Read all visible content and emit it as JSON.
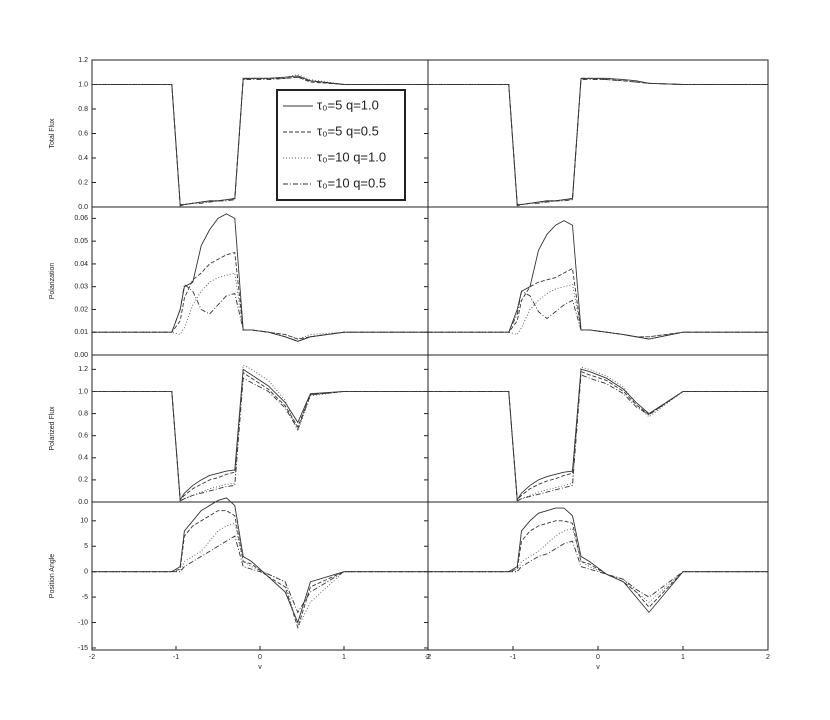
{
  "chart_data": [
    {
      "type": "line",
      "ylabel": "Total Flux",
      "legend": "lower right",
      "xlim": [
        -2,
        2
      ],
      "ylim": [
        0,
        1.2
      ],
      "yticks": [
        {
          "value": 0,
          "label": "0.0"
        },
        {
          "value": 0.2,
          "label": "0.2"
        },
        {
          "value": 0.4,
          "label": "0.4"
        },
        {
          "value": 0.6,
          "label": "0.6"
        },
        {
          "value": 0.8,
          "label": "0.8"
        },
        {
          "value": 1.0,
          "label": "1.0"
        },
        {
          "value": 1.2,
          "label": "1.2"
        }
      ],
      "x": [
        -2,
        -1.05,
        -0.95,
        -0.9,
        -0.8,
        -0.7,
        -0.6,
        -0.5,
        -0.4,
        -0.3,
        -0.2,
        -0.1,
        0.1,
        0.3,
        0.45,
        0.6,
        1,
        2
      ],
      "series": [
        {
          "name": "τ₀=5 q=1.0",
          "color": "#333333",
          "dash": "none",
          "values": [
            1,
            1,
            0.02,
            0.02,
            0.03,
            0.04,
            0.05,
            0.05,
            0.06,
            0.07,
            1.05,
            1.05,
            1.05,
            1.06,
            1.07,
            1.03,
            1.0,
            1.0
          ]
        },
        {
          "name": "τ₀=5 q=0.5",
          "color": "#333333",
          "dash": "4 2",
          "values": [
            1,
            1,
            0.02,
            0.02,
            0.03,
            0.04,
            0.05,
            0.05,
            0.06,
            0.07,
            1.05,
            1.05,
            1.05,
            1.05,
            1.06,
            1.02,
            1.0,
            1.0
          ]
        },
        {
          "name": "τ₀=10 q=1.0",
          "color": "#555555",
          "dash": "1 2",
          "values": [
            1,
            1,
            0.01,
            0.02,
            0.03,
            0.04,
            0.04,
            0.05,
            0.06,
            0.06,
            1.04,
            1.05,
            1.05,
            1.06,
            1.08,
            1.04,
            1.0,
            1.0
          ]
        },
        {
          "name": "τ₀=10 q=0.5",
          "color": "#333333",
          "dash": "5 2 1 2",
          "values": [
            1,
            1,
            0.01,
            0.02,
            0.03,
            0.03,
            0.04,
            0.05,
            0.05,
            0.06,
            1.04,
            1.04,
            1.04,
            1.05,
            1.06,
            1.03,
            1.0,
            1.0
          ]
        }
      ]
    },
    {
      "type": "line",
      "xlim": [
        -2,
        2
      ],
      "ylim": [
        0,
        1.2
      ],
      "x": [
        -2,
        -1.05,
        -0.95,
        -0.9,
        -0.8,
        -0.7,
        -0.6,
        -0.5,
        -0.4,
        -0.3,
        -0.2,
        -0.1,
        0.1,
        0.3,
        0.45,
        0.6,
        1,
        2
      ],
      "series": [
        {
          "color": "#333333",
          "dash": "none",
          "values": [
            1,
            1,
            0.02,
            0.02,
            0.03,
            0.04,
            0.05,
            0.05,
            0.06,
            0.07,
            1.05,
            1.05,
            1.05,
            1.04,
            1.03,
            1.01,
            1.0,
            1.0
          ]
        },
        {
          "color": "#333333",
          "dash": "4 2",
          "values": [
            1,
            1,
            0.02,
            0.02,
            0.03,
            0.04,
            0.05,
            0.05,
            0.06,
            0.07,
            1.05,
            1.05,
            1.04,
            1.03,
            1.02,
            1.01,
            1.0,
            1.0
          ]
        },
        {
          "color": "#555555",
          "dash": "1 2",
          "values": [
            1,
            1,
            0.01,
            0.02,
            0.03,
            0.04,
            0.04,
            0.05,
            0.06,
            0.06,
            1.04,
            1.05,
            1.05,
            1.04,
            1.03,
            1.01,
            1.0,
            1.0
          ]
        },
        {
          "color": "#333333",
          "dash": "5 2 1 2",
          "values": [
            1,
            1,
            0.01,
            0.02,
            0.03,
            0.03,
            0.04,
            0.05,
            0.05,
            0.06,
            1.04,
            1.04,
            1.04,
            1.03,
            1.02,
            1.01,
            1.0,
            1.0
          ]
        }
      ]
    },
    {
      "type": "line",
      "ylabel": "Polarization",
      "xlim": [
        -2,
        2
      ],
      "ylim": [
        0,
        0.065
      ],
      "yticks": [
        {
          "value": 0,
          "label": "0.00"
        },
        {
          "value": 0.01,
          "label": "0.01"
        },
        {
          "value": 0.02,
          "label": "0.02"
        },
        {
          "value": 0.03,
          "label": "0.03"
        },
        {
          "value": 0.04,
          "label": "0.04"
        },
        {
          "value": 0.05,
          "label": "0.05"
        },
        {
          "value": 0.06,
          "label": "0.06"
        }
      ],
      "x": [
        -2,
        -1.05,
        -0.95,
        -0.9,
        -0.8,
        -0.7,
        -0.6,
        -0.5,
        -0.4,
        -0.3,
        -0.2,
        -0.1,
        0.1,
        0.3,
        0.45,
        0.6,
        1,
        2
      ],
      "series": [
        {
          "color": "#333333",
          "dash": "none",
          "values": [
            0.01,
            0.01,
            0.02,
            0.03,
            0.032,
            0.048,
            0.055,
            0.06,
            0.062,
            0.06,
            0.011,
            0.011,
            0.01,
            0.008,
            0.006,
            0.008,
            0.01,
            0.01
          ]
        },
        {
          "color": "#333333",
          "dash": "4 2",
          "values": [
            0.01,
            0.01,
            0.015,
            0.025,
            0.033,
            0.036,
            0.04,
            0.042,
            0.044,
            0.045,
            0.011,
            0.011,
            0.01,
            0.009,
            0.007,
            0.008,
            0.01,
            0.01
          ]
        },
        {
          "color": "#555555",
          "dash": "1 2",
          "values": [
            0.01,
            0.01,
            0.009,
            0.012,
            0.022,
            0.028,
            0.032,
            0.034,
            0.035,
            0.036,
            0.011,
            0.011,
            0.01,
            0.009,
            0.007,
            0.009,
            0.01,
            0.01
          ]
        },
        {
          "color": "#333333",
          "dash": "5 2 1 2",
          "values": [
            0.01,
            0.01,
            0.02,
            0.031,
            0.028,
            0.02,
            0.018,
            0.022,
            0.026,
            0.027,
            0.011,
            0.011,
            0.01,
            0.008,
            0.006,
            0.008,
            0.01,
            0.01
          ]
        }
      ]
    },
    {
      "type": "line",
      "xlim": [
        -2,
        2
      ],
      "ylim": [
        0,
        0.065
      ],
      "x": [
        -2,
        -1.05,
        -0.95,
        -0.9,
        -0.8,
        -0.7,
        -0.6,
        -0.5,
        -0.4,
        -0.3,
        -0.2,
        -0.1,
        0.1,
        0.3,
        0.45,
        0.6,
        1,
        2
      ],
      "series": [
        {
          "color": "#333333",
          "dash": "none",
          "values": [
            0.01,
            0.01,
            0.02,
            0.028,
            0.03,
            0.046,
            0.053,
            0.057,
            0.059,
            0.057,
            0.011,
            0.011,
            0.01,
            0.009,
            0.008,
            0.007,
            0.01,
            0.01
          ]
        },
        {
          "color": "#333333",
          "dash": "4 2",
          "values": [
            0.01,
            0.01,
            0.015,
            0.024,
            0.03,
            0.032,
            0.033,
            0.034,
            0.036,
            0.038,
            0.011,
            0.011,
            0.01,
            0.009,
            0.008,
            0.008,
            0.01,
            0.01
          ]
        },
        {
          "color": "#555555",
          "dash": "1 2",
          "values": [
            0.01,
            0.01,
            0.009,
            0.012,
            0.02,
            0.024,
            0.027,
            0.029,
            0.03,
            0.031,
            0.011,
            0.011,
            0.01,
            0.009,
            0.008,
            0.008,
            0.01,
            0.01
          ]
        },
        {
          "color": "#333333",
          "dash": "5 2 1 2",
          "values": [
            0.01,
            0.01,
            0.018,
            0.028,
            0.026,
            0.019,
            0.016,
            0.019,
            0.022,
            0.024,
            0.011,
            0.011,
            0.01,
            0.009,
            0.008,
            0.007,
            0.01,
            0.01
          ]
        }
      ]
    },
    {
      "type": "line",
      "ylabel": "Polarized Flux",
      "xlim": [
        -2,
        2
      ],
      "ylim": [
        0,
        1.33
      ],
      "yticks": [
        {
          "value": 0,
          "label": "0.0"
        },
        {
          "value": 0.2,
          "label": "0.2"
        },
        {
          "value": 0.4,
          "label": "0.4"
        },
        {
          "value": 0.6,
          "label": "0.6"
        },
        {
          "value": 0.8,
          "label": "0.8"
        },
        {
          "value": 1.0,
          "label": "1.0"
        },
        {
          "value": 1.2,
          "label": "1.2"
        }
      ],
      "x": [
        -2,
        -1.05,
        -0.95,
        -0.9,
        -0.8,
        -0.7,
        -0.6,
        -0.5,
        -0.4,
        -0.3,
        -0.2,
        -0.1,
        0.1,
        0.3,
        0.45,
        0.6,
        1,
        2
      ],
      "series": [
        {
          "color": "#333333",
          "dash": "none",
          "values": [
            1,
            1,
            0.02,
            0.08,
            0.15,
            0.2,
            0.24,
            0.26,
            0.28,
            0.29,
            1.2,
            1.15,
            1.05,
            0.9,
            0.72,
            0.98,
            1.0,
            1.0
          ]
        },
        {
          "color": "#333333",
          "dash": "4 2",
          "values": [
            1,
            1,
            0.02,
            0.06,
            0.12,
            0.16,
            0.2,
            0.22,
            0.25,
            0.27,
            1.17,
            1.12,
            1.02,
            0.87,
            0.68,
            0.97,
            1.0,
            1.0
          ]
        },
        {
          "color": "#555555",
          "dash": "1 2",
          "values": [
            1,
            1,
            0.01,
            0.03,
            0.06,
            0.09,
            0.12,
            0.14,
            0.16,
            0.17,
            1.24,
            1.2,
            1.1,
            0.92,
            0.64,
            0.96,
            1.0,
            1.0
          ]
        },
        {
          "color": "#333333",
          "dash": "5 2 1 2",
          "values": [
            1,
            1,
            0.01,
            0.03,
            0.06,
            0.08,
            0.1,
            0.12,
            0.14,
            0.15,
            1.12,
            1.08,
            1.0,
            0.85,
            0.66,
            0.97,
            1.0,
            1.0
          ]
        }
      ]
    },
    {
      "type": "line",
      "xlim": [
        -2,
        2
      ],
      "ylim": [
        0,
        1.33
      ],
      "x": [
        -2,
        -1.05,
        -0.95,
        -0.9,
        -0.8,
        -0.7,
        -0.6,
        -0.5,
        -0.4,
        -0.3,
        -0.2,
        -0.1,
        0.1,
        0.3,
        0.45,
        0.6,
        1,
        2
      ],
      "series": [
        {
          "color": "#333333",
          "dash": "none",
          "values": [
            1,
            1,
            0.02,
            0.08,
            0.15,
            0.2,
            0.23,
            0.25,
            0.27,
            0.28,
            1.2,
            1.18,
            1.12,
            1.02,
            0.9,
            0.8,
            1.0,
            1.0
          ]
        },
        {
          "color": "#333333",
          "dash": "4 2",
          "values": [
            1,
            1,
            0.02,
            0.06,
            0.12,
            0.16,
            0.19,
            0.21,
            0.24,
            0.26,
            1.18,
            1.15,
            1.1,
            1.0,
            0.88,
            0.79,
            1.0,
            1.0
          ]
        },
        {
          "color": "#555555",
          "dash": "1 2",
          "values": [
            1,
            1,
            0.01,
            0.03,
            0.06,
            0.09,
            0.11,
            0.13,
            0.15,
            0.17,
            1.22,
            1.2,
            1.14,
            1.04,
            0.88,
            0.77,
            1.0,
            1.0
          ]
        },
        {
          "color": "#333333",
          "dash": "5 2 1 2",
          "values": [
            1,
            1,
            0.01,
            0.03,
            0.05,
            0.07,
            0.09,
            0.11,
            0.13,
            0.15,
            1.15,
            1.12,
            1.07,
            0.98,
            0.86,
            0.79,
            1.0,
            1.0
          ]
        }
      ]
    },
    {
      "type": "line",
      "ylabel": "Position Angle",
      "xlabel": "v",
      "xlim": [
        -2,
        2
      ],
      "ylim": [
        -15.4,
        13.7
      ],
      "xticks": [
        -2,
        -1,
        0,
        1,
        2
      ],
      "yticks": [
        -15,
        -10,
        -5,
        0,
        5,
        10
      ],
      "x": [
        -2,
        -1.05,
        -0.95,
        -0.9,
        -0.8,
        -0.7,
        -0.6,
        -0.5,
        -0.4,
        -0.3,
        -0.2,
        -0.1,
        0.1,
        0.3,
        0.45,
        0.6,
        1,
        2
      ],
      "series": [
        {
          "color": "#333333",
          "dash": "none",
          "values": [
            0,
            0,
            1,
            8,
            10,
            12,
            13,
            14,
            14.5,
            13,
            3,
            2,
            -1,
            -4,
            -10,
            -2,
            0,
            0
          ]
        },
        {
          "color": "#333333",
          "dash": "4 2",
          "values": [
            0,
            0,
            0.5,
            7,
            9,
            10,
            11,
            12,
            12,
            11,
            2,
            1.5,
            -1,
            -3,
            -11,
            -3,
            0,
            0
          ]
        },
        {
          "color": "#555555",
          "dash": "1 2",
          "values": [
            0,
            0,
            0,
            2,
            3,
            4,
            6,
            8,
            9,
            9.5,
            2,
            1,
            -0.5,
            -2,
            -11,
            -6,
            0,
            0
          ]
        },
        {
          "color": "#333333",
          "dash": "5 2 1 2",
          "values": [
            0,
            0,
            0,
            1,
            2,
            3,
            4,
            5,
            6,
            7,
            1,
            0.5,
            -0.5,
            -2,
            -8,
            -4,
            0,
            0
          ]
        }
      ]
    },
    {
      "type": "line",
      "xlabel": "v",
      "xlim": [
        -2,
        2
      ],
      "ylim": [
        -15.4,
        13.7
      ],
      "xticks": [
        -2,
        -1,
        0,
        1,
        2
      ],
      "x": [
        -2,
        -1.05,
        -0.95,
        -0.9,
        -0.8,
        -0.7,
        -0.6,
        -0.5,
        -0.4,
        -0.3,
        -0.2,
        -0.1,
        0.1,
        0.3,
        0.45,
        0.6,
        1,
        2
      ],
      "series": [
        {
          "color": "#333333",
          "dash": "none",
          "values": [
            0,
            0,
            1,
            8,
            10,
            11.5,
            12,
            12.5,
            12.5,
            11,
            3,
            2,
            -0.5,
            -2,
            -5,
            -8,
            0,
            0
          ]
        },
        {
          "color": "#333333",
          "dash": "4 2",
          "values": [
            0,
            0,
            0.5,
            6,
            8,
            9,
            9.5,
            10,
            10,
            9.5,
            2,
            1.5,
            -0.5,
            -2,
            -4,
            -7,
            0,
            0
          ]
        },
        {
          "color": "#555555",
          "dash": "1 2",
          "values": [
            0,
            0,
            0,
            2,
            3,
            4,
            5.5,
            7,
            8,
            8.5,
            2,
            1,
            -0.5,
            -1.5,
            -4,
            -6,
            0,
            0
          ]
        },
        {
          "color": "#333333",
          "dash": "5 2 1 2",
          "values": [
            0,
            0,
            0,
            1,
            2,
            3,
            3.5,
            4.5,
            5.5,
            6,
            1,
            0.5,
            -0.5,
            -1.5,
            -3.5,
            -5,
            0,
            0
          ]
        }
      ]
    }
  ]
}
